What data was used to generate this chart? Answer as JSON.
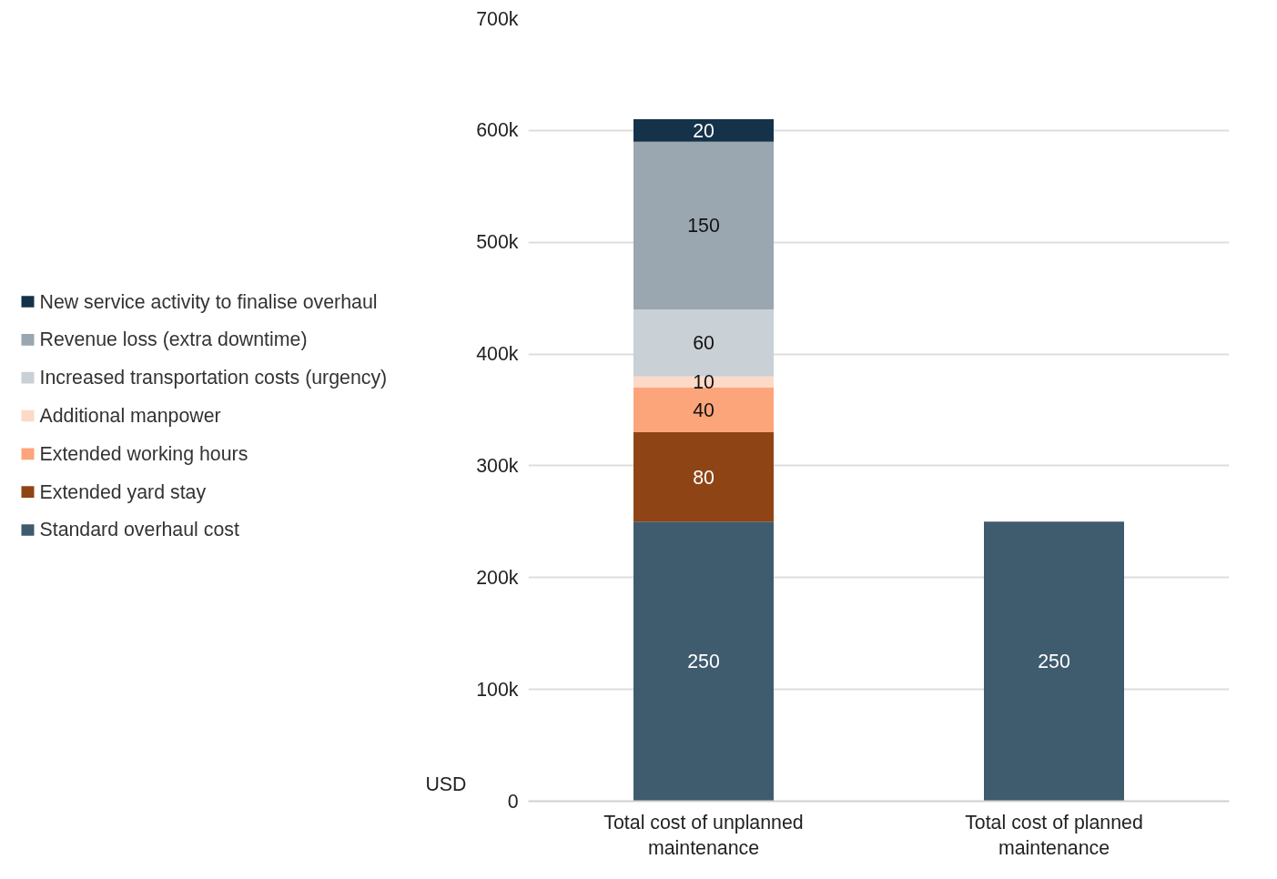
{
  "chart_data": {
    "type": "bar",
    "stacked": true,
    "ylabel": "USD",
    "categories": [
      "Total cost of unplanned maintenance",
      "Total cost of planned maintenance"
    ],
    "series": [
      {
        "name": "Standard overhaul cost",
        "color": "#3f5b6e",
        "values": [
          250,
          250
        ]
      },
      {
        "name": "Extended yard stay",
        "color": "#8f4416",
        "values": [
          80,
          null
        ]
      },
      {
        "name": "Extended working hours",
        "color": "#fca57a",
        "values": [
          40,
          null
        ]
      },
      {
        "name": "Additional manpower",
        "color": "#fdd9c8",
        "values": [
          10,
          null
        ]
      },
      {
        "name": "Increased transportation costs (urgency)",
        "color": "#c9d0d6",
        "values": [
          60,
          null
        ]
      },
      {
        "name": "Revenue loss (extra downtime)",
        "color": "#9aa7b0",
        "values": [
          150,
          null
        ]
      },
      {
        "name": "New service activity to finalise overhaul",
        "color": "#14324a",
        "values": [
          20,
          null
        ]
      }
    ],
    "ylim": [
      0,
      700
    ],
    "yticks": [
      0,
      {
        "value": 100,
        "label": "100k"
      },
      {
        "value": 200,
        "label": "200k"
      },
      {
        "value": 300,
        "label": "300k"
      },
      {
        "value": 400,
        "label": "400k"
      },
      {
        "value": 500,
        "label": "500k"
      },
      {
        "value": 600,
        "label": "600k"
      },
      {
        "value": 700,
        "label": "700k"
      }
    ],
    "grid": "y",
    "legend": "left",
    "data_labels": true
  }
}
